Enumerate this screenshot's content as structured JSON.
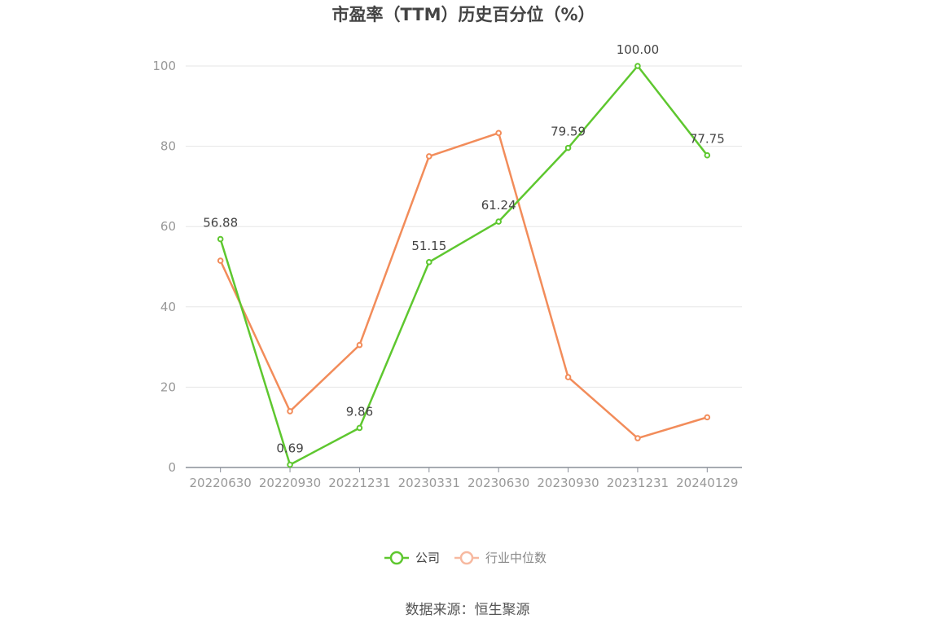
{
  "chart_data": {
    "type": "line",
    "title": "市盈率（TTM）历史百分位（%）",
    "categories": [
      "20220630",
      "20220930",
      "20221231",
      "20230331",
      "20230630",
      "20230930",
      "20231231",
      "20240129"
    ],
    "ylim": [
      0,
      100
    ],
    "yticks": [
      0,
      20,
      40,
      60,
      80,
      100
    ],
    "grid": true,
    "legend_position": "bottom",
    "series": [
      {
        "name": "公司",
        "color": "#5ec72f",
        "values": [
          56.88,
          0.69,
          9.86,
          51.15,
          61.24,
          79.59,
          100.0,
          77.75
        ],
        "labels": [
          "56.88",
          "0.69",
          "9.86",
          "51.15",
          "61.24",
          "79.59",
          "100.00",
          "77.75"
        ]
      },
      {
        "name": "行业中位数",
        "color": "#f28c5a",
        "values": [
          51.5,
          14.0,
          30.5,
          77.5,
          83.3,
          22.5,
          7.3,
          12.5
        ]
      }
    ],
    "source": "数据来源：恒生聚源"
  }
}
